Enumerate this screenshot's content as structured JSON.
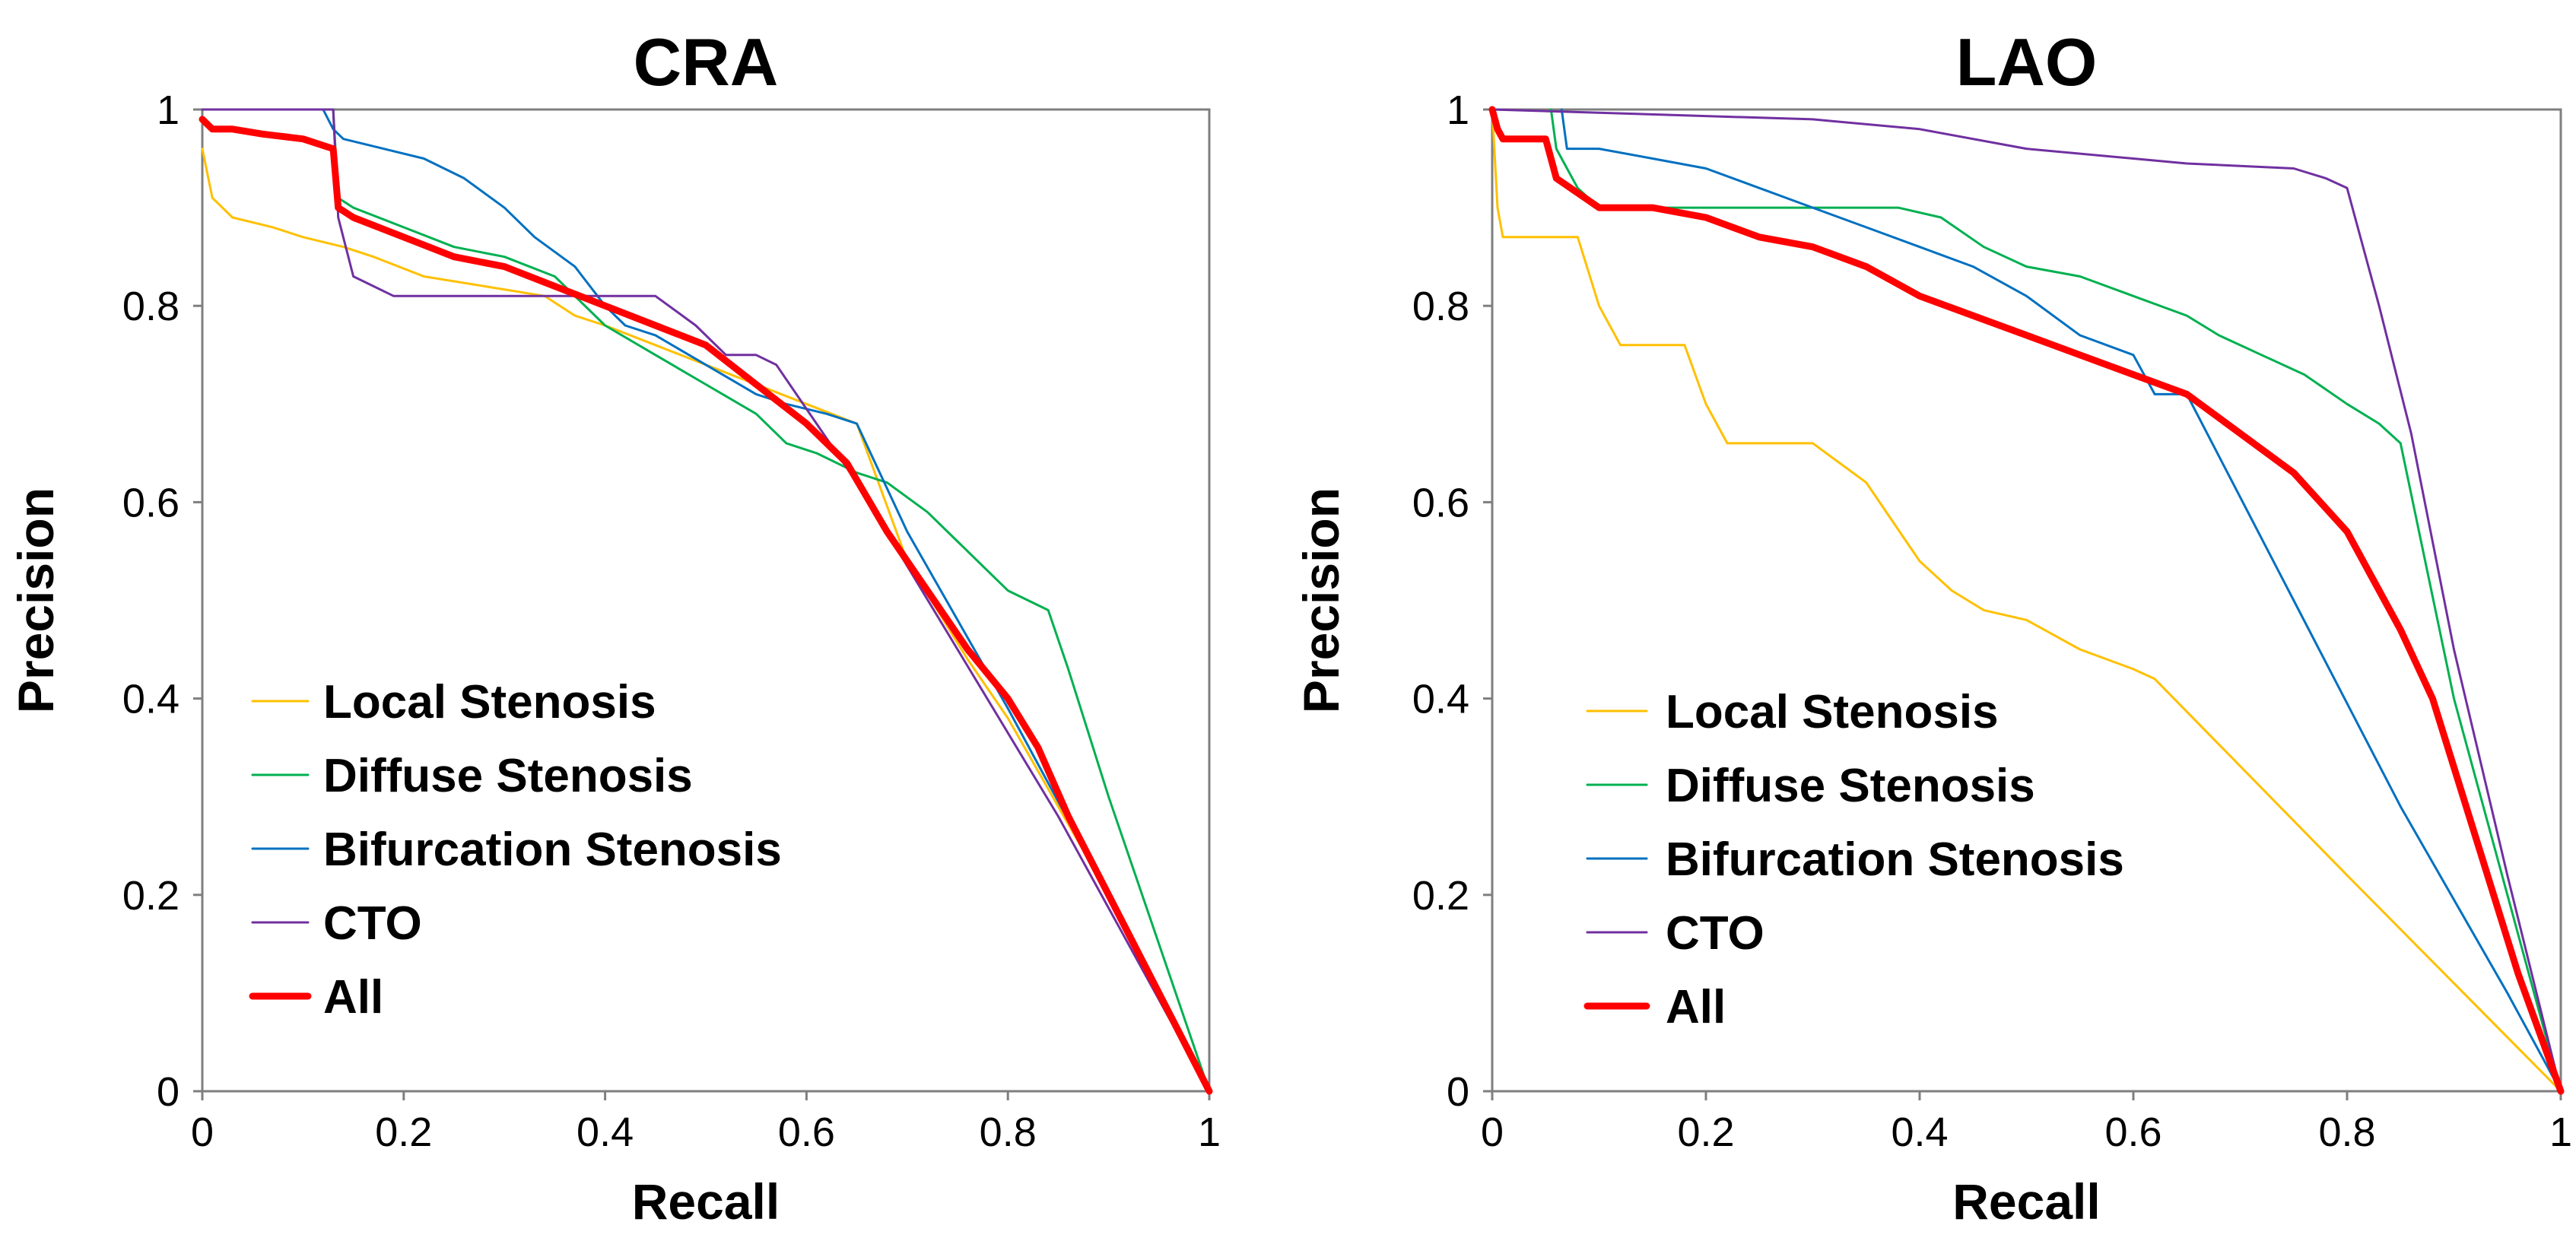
{
  "chart_data": [
    {
      "type": "line",
      "title": "CRA",
      "xlabel": "Recall",
      "ylabel": "Precision",
      "xlim": [
        0,
        1
      ],
      "ylim": [
        0,
        1
      ],
      "xticks": [
        "0",
        "0.2",
        "0.4",
        "0.6",
        "0.8",
        "1"
      ],
      "yticks": [
        "0",
        "0.2",
        "0.4",
        "0.6",
        "0.8",
        "1"
      ],
      "legend_position": "bottom-left",
      "series": [
        {
          "name": "Local Stenosis",
          "color": "#FFC000",
          "width": 3,
          "x": [
            0,
            0.01,
            0.03,
            0.07,
            0.1,
            0.14,
            0.17,
            0.22,
            0.28,
            0.34,
            0.37,
            0.4,
            0.45,
            0.5,
            0.55,
            0.6,
            0.65,
            0.7,
            0.76,
            0.8,
            0.85,
            0.9,
            0.95,
            1
          ],
          "y": [
            0.96,
            0.91,
            0.89,
            0.88,
            0.87,
            0.86,
            0.85,
            0.83,
            0.82,
            0.81,
            0.79,
            0.78,
            0.76,
            0.74,
            0.72,
            0.7,
            0.68,
            0.54,
            0.44,
            0.38,
            0.29,
            0.2,
            0.1,
            0
          ]
        },
        {
          "name": "Diffuse Stenosis",
          "color": "#00B050",
          "width": 3,
          "x": [
            0.13,
            0.135,
            0.15,
            0.2,
            0.25,
            0.3,
            0.35,
            0.4,
            0.45,
            0.5,
            0.55,
            0.58,
            0.61,
            0.65,
            0.68,
            0.72,
            0.75,
            0.8,
            0.84,
            0.86,
            0.9,
            0.95,
            1
          ],
          "y": [
            1.0,
            0.91,
            0.9,
            0.88,
            0.86,
            0.85,
            0.83,
            0.78,
            0.75,
            0.72,
            0.69,
            0.66,
            0.65,
            0.63,
            0.62,
            0.59,
            0.56,
            0.51,
            0.49,
            0.43,
            0.3,
            0.15,
            0
          ]
        },
        {
          "name": "Bifurcation Stenosis",
          "color": "#0070C0",
          "width": 3,
          "x": [
            0.12,
            0.13,
            0.14,
            0.18,
            0.22,
            0.26,
            0.3,
            0.33,
            0.37,
            0.4,
            0.42,
            0.45,
            0.5,
            0.55,
            0.58,
            0.62,
            0.65,
            0.7,
            0.75,
            0.8,
            0.9,
            1
          ],
          "y": [
            1.0,
            0.98,
            0.97,
            0.96,
            0.95,
            0.93,
            0.9,
            0.87,
            0.84,
            0.8,
            0.78,
            0.77,
            0.74,
            0.71,
            0.7,
            0.69,
            0.68,
            0.57,
            0.48,
            0.39,
            0.2,
            0
          ]
        },
        {
          "name": "CTO",
          "color": "#7030A0",
          "width": 3,
          "x": [
            0,
            0.13,
            0.135,
            0.15,
            0.19,
            0.25,
            0.32,
            0.38,
            0.45,
            0.49,
            0.52,
            0.55,
            0.57,
            0.65,
            0.75,
            0.85,
            1
          ],
          "y": [
            1.0,
            1.0,
            0.89,
            0.83,
            0.81,
            0.81,
            0.81,
            0.81,
            0.81,
            0.78,
            0.75,
            0.75,
            0.74,
            0.62,
            0.45,
            0.28,
            0
          ]
        },
        {
          "name": "All",
          "color": "#FF0000",
          "width": 9,
          "x": [
            0,
            0.01,
            0.03,
            0.06,
            0.1,
            0.13,
            0.135,
            0.15,
            0.2,
            0.25,
            0.3,
            0.35,
            0.4,
            0.45,
            0.5,
            0.55,
            0.6,
            0.64,
            0.68,
            0.72,
            0.76,
            0.8,
            0.83,
            0.86,
            0.9,
            0.95,
            1
          ],
          "y": [
            0.99,
            0.98,
            0.98,
            0.975,
            0.97,
            0.96,
            0.9,
            0.89,
            0.87,
            0.85,
            0.84,
            0.82,
            0.8,
            0.78,
            0.76,
            0.72,
            0.68,
            0.64,
            0.57,
            0.51,
            0.45,
            0.4,
            0.35,
            0.28,
            0.2,
            0.1,
            0
          ]
        }
      ]
    },
    {
      "type": "line",
      "title": "LAO",
      "xlabel": "Recall",
      "ylabel": "Precision",
      "xlim": [
        0,
        1
      ],
      "ylim": [
        0,
        1
      ],
      "xticks": [
        "0",
        "0.2",
        "0.4",
        "0.6",
        "0.8",
        "1"
      ],
      "yticks": [
        "0",
        "0.2",
        "0.4",
        "0.6",
        "0.8",
        "1"
      ],
      "legend_position": "bottom-left",
      "series": [
        {
          "name": "Local Stenosis",
          "color": "#FFC000",
          "width": 3,
          "x": [
            0,
            0.005,
            0.01,
            0.05,
            0.08,
            0.1,
            0.12,
            0.15,
            0.18,
            0.2,
            0.22,
            0.3,
            0.35,
            0.4,
            0.43,
            0.46,
            0.5,
            0.55,
            0.6,
            0.62,
            0.8,
            1
          ],
          "y": [
            1.0,
            0.9,
            0.87,
            0.87,
            0.87,
            0.8,
            0.76,
            0.76,
            0.76,
            0.7,
            0.66,
            0.66,
            0.62,
            0.54,
            0.51,
            0.49,
            0.48,
            0.45,
            0.43,
            0.42,
            0.22,
            0
          ]
        },
        {
          "name": "Diffuse Stenosis",
          "color": "#00B050",
          "width": 3,
          "x": [
            0.055,
            0.06,
            0.08,
            0.1,
            0.2,
            0.3,
            0.38,
            0.42,
            0.46,
            0.5,
            0.55,
            0.6,
            0.65,
            0.68,
            0.72,
            0.76,
            0.8,
            0.83,
            0.85,
            0.9,
            0.95,
            1
          ],
          "y": [
            1.0,
            0.96,
            0.92,
            0.9,
            0.9,
            0.9,
            0.9,
            0.89,
            0.86,
            0.84,
            0.83,
            0.81,
            0.79,
            0.77,
            0.75,
            0.73,
            0.7,
            0.68,
            0.66,
            0.4,
            0.2,
            0
          ]
        },
        {
          "name": "Bifurcation Stenosis",
          "color": "#0070C0",
          "width": 3,
          "x": [
            0.065,
            0.07,
            0.1,
            0.15,
            0.2,
            0.25,
            0.3,
            0.35,
            0.4,
            0.45,
            0.5,
            0.55,
            0.6,
            0.62,
            0.65,
            0.75,
            0.85,
            0.95,
            1
          ],
          "y": [
            1.0,
            0.96,
            0.96,
            0.95,
            0.94,
            0.92,
            0.9,
            0.88,
            0.86,
            0.84,
            0.81,
            0.77,
            0.75,
            0.71,
            0.71,
            0.5,
            0.29,
            0.1,
            0
          ]
        },
        {
          "name": "CTO",
          "color": "#7030A0",
          "width": 3,
          "x": [
            0,
            0.3,
            0.4,
            0.5,
            0.6,
            0.65,
            0.75,
            0.78,
            0.8,
            0.83,
            0.86,
            0.9,
            0.95,
            1
          ],
          "y": [
            1.0,
            0.99,
            0.98,
            0.96,
            0.95,
            0.945,
            0.94,
            0.93,
            0.92,
            0.8,
            0.67,
            0.45,
            0.22,
            0
          ]
        },
        {
          "name": "All",
          "color": "#FF0000",
          "width": 9,
          "x": [
            0,
            0.005,
            0.01,
            0.05,
            0.06,
            0.1,
            0.15,
            0.2,
            0.25,
            0.3,
            0.35,
            0.4,
            0.45,
            0.5,
            0.55,
            0.6,
            0.65,
            0.7,
            0.75,
            0.8,
            0.85,
            0.88,
            0.92,
            0.96,
            1
          ],
          "y": [
            1.0,
            0.98,
            0.97,
            0.97,
            0.93,
            0.9,
            0.9,
            0.89,
            0.87,
            0.86,
            0.84,
            0.81,
            0.79,
            0.77,
            0.75,
            0.73,
            0.71,
            0.67,
            0.63,
            0.57,
            0.47,
            0.4,
            0.26,
            0.12,
            0
          ]
        }
      ]
    }
  ]
}
